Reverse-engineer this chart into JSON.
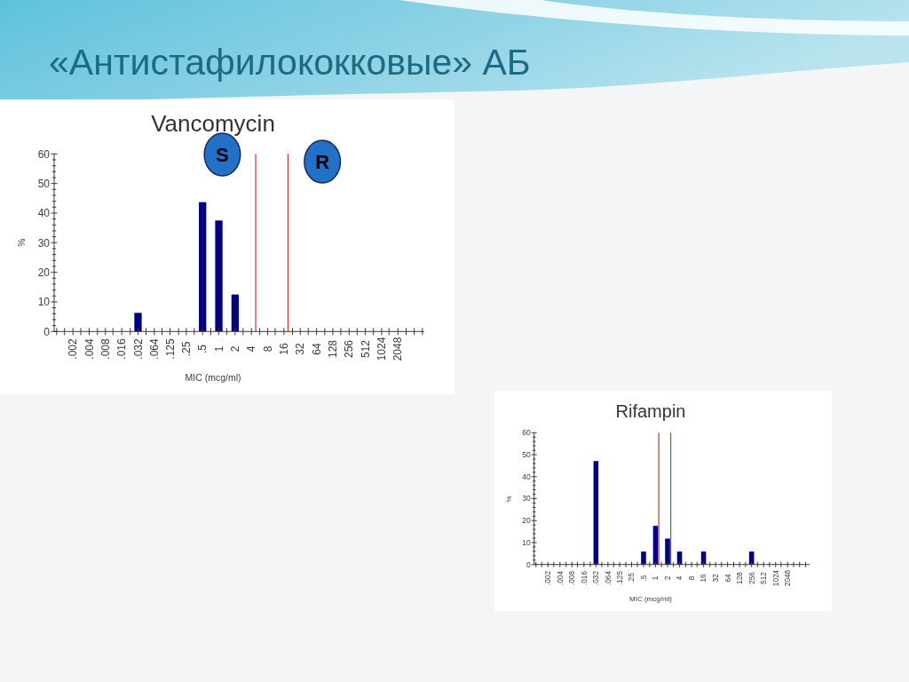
{
  "chart_data": [
    {
      "type": "bar",
      "title": "«Антистафилококковые» АБ",
      "subtitle": "Vancomycin",
      "xlabel": "MIC (mcg/ml)",
      "ylabel": "%",
      "x": [
        0.032,
        0.5,
        1,
        2
      ],
      "values": [
        6.3,
        43.7,
        37.5,
        12.5
      ],
      "color": "#000080",
      "log": "x",
      "xlim": [
        0.0009,
        6300
      ],
      "xticks": [
        {
          "value": 0.001,
          "label": null
        },
        {
          "value": 0.0014,
          "label": null
        },
        {
          "value": 0.002,
          "label": ".002"
        },
        {
          "value": 0.0028,
          "label": null
        },
        {
          "value": 0.004,
          "label": ".004"
        },
        {
          "value": 0.0057,
          "label": null
        },
        {
          "value": 0.008,
          "label": ".008"
        },
        {
          "value": 0.011,
          "label": null
        },
        {
          "value": 0.016,
          "label": ".016"
        },
        {
          "value": 0.023,
          "label": null
        },
        {
          "value": 0.032,
          "label": ".032"
        },
        {
          "value": 0.045,
          "label": null
        },
        {
          "value": 0.064,
          "label": ".064"
        },
        {
          "value": 0.089,
          "label": null
        },
        {
          "value": 0.125,
          "label": ".125"
        },
        {
          "value": 0.18,
          "label": null
        },
        {
          "value": 0.25,
          "label": ".25"
        },
        {
          "value": 0.35,
          "label": null
        },
        {
          "value": 0.5,
          "label": ".5"
        },
        {
          "value": 0.71,
          "label": null
        },
        1,
        {
          "value": 1.4,
          "label": null
        },
        2,
        {
          "value": 2.8,
          "label": null
        },
        4,
        {
          "value": 5.7,
          "label": null
        },
        8,
        {
          "value": 11,
          "label": null
        },
        16,
        {
          "value": 23,
          "label": null
        },
        32,
        {
          "value": 45,
          "label": null
        },
        64,
        {
          "value": 91,
          "label": null
        },
        128,
        {
          "value": 180,
          "label": null
        },
        256,
        {
          "value": 360,
          "label": null
        },
        512,
        {
          "value": 720,
          "label": null
        },
        1024,
        {
          "value": 1400,
          "label": null
        },
        2048,
        {
          "value": 2900,
          "label": null
        },
        {
          "value": 4100,
          "label": null
        },
        {
          "value": 5800,
          "label": null
        }
      ],
      "ylim": [
        0,
        60
      ],
      "yticks": [
        0,
        {
          "value": 2,
          "label": null
        },
        {
          "value": 4,
          "label": null
        },
        {
          "value": 6,
          "label": null
        },
        {
          "value": 8,
          "label": null
        },
        10,
        {
          "value": 12,
          "label": null
        },
        {
          "value": 14,
          "label": null
        },
        {
          "value": 16,
          "label": null
        },
        {
          "value": 18,
          "label": null
        },
        20,
        {
          "value": 22,
          "label": null
        },
        {
          "value": 24,
          "label": null
        },
        {
          "value": 26,
          "label": null
        },
        {
          "value": 28,
          "label": null
        },
        30,
        {
          "value": 32,
          "label": null
        },
        {
          "value": 34,
          "label": null
        },
        {
          "value": 36,
          "label": null
        },
        {
          "value": 38,
          "label": null
        },
        40,
        {
          "value": 42,
          "label": null
        },
        {
          "value": 44,
          "label": null
        },
        {
          "value": 46,
          "label": null
        },
        {
          "value": 48,
          "label": null
        },
        50,
        {
          "value": 52,
          "label": null
        },
        {
          "value": 54,
          "label": null
        },
        {
          "value": 56,
          "label": null
        },
        {
          "value": 58,
          "label": null
        },
        60
      ],
      "ref_lines": [
        {
          "axis": "x",
          "value": 4.8,
          "color": "#cc3333"
        },
        {
          "axis": "x",
          "value": 19,
          "color": "#cc3333"
        }
      ],
      "annotations": [
        "S",
        "R"
      ]
    },
    {
      "type": "bar",
      "title": "Rifampin",
      "xlabel": "MIC (mcg/ml)",
      "ylabel": "%",
      "x": [
        0.032,
        0.5,
        1,
        2,
        4,
        16,
        256
      ],
      "values": [
        47.1,
        5.9,
        17.6,
        11.8,
        5.9,
        5.9,
        5.9
      ],
      "color": "#000080",
      "log": "x",
      "xlim": [
        0.0009,
        7400
      ],
      "xticks": [
        {
          "value": 0.001,
          "label": null
        },
        {
          "value": 0.0014,
          "label": null
        },
        {
          "value": 0.002,
          "label": ".002"
        },
        {
          "value": 0.0028,
          "label": null
        },
        {
          "value": 0.004,
          "label": ".004"
        },
        {
          "value": 0.0057,
          "label": null
        },
        {
          "value": 0.008,
          "label": ".008"
        },
        {
          "value": 0.011,
          "label": null
        },
        {
          "value": 0.016,
          "label": ".016"
        },
        {
          "value": 0.023,
          "label": null
        },
        {
          "value": 0.032,
          "label": ".032"
        },
        {
          "value": 0.045,
          "label": null
        },
        {
          "value": 0.064,
          "label": ".064"
        },
        {
          "value": 0.089,
          "label": null
        },
        {
          "value": 0.125,
          "label": ".125"
        },
        {
          "value": 0.18,
          "label": null
        },
        {
          "value": 0.25,
          "label": ".25"
        },
        {
          "value": 0.35,
          "label": null
        },
        {
          "value": 0.5,
          "label": ".5"
        },
        {
          "value": 0.71,
          "label": null
        },
        1,
        {
          "value": 1.4,
          "label": null
        },
        2,
        {
          "value": 2.8,
          "label": null
        },
        4,
        {
          "value": 5.7,
          "label": null
        },
        8,
        {
          "value": 11,
          "label": null
        },
        16,
        {
          "value": 23,
          "label": null
        },
        32,
        {
          "value": 45,
          "label": null
        },
        64,
        {
          "value": 91,
          "label": null
        },
        128,
        {
          "value": 180,
          "label": null
        },
        256,
        {
          "value": 360,
          "label": null
        },
        512,
        {
          "value": 720,
          "label": null
        },
        1024,
        {
          "value": 1400,
          "label": null
        },
        2048,
        {
          "value": 2900,
          "label": null
        },
        {
          "value": 4100,
          "label": null
        },
        {
          "value": 5800,
          "label": null
        }
      ],
      "ylim": [
        0,
        60
      ],
      "yticks": [
        0,
        {
          "value": 2,
          "label": null
        },
        {
          "value": 4,
          "label": null
        },
        {
          "value": 6,
          "label": null
        },
        {
          "value": 8,
          "label": null
        },
        10,
        {
          "value": 12,
          "label": null
        },
        {
          "value": 14,
          "label": null
        },
        {
          "value": 16,
          "label": null
        },
        {
          "value": 18,
          "label": null
        },
        20,
        {
          "value": 22,
          "label": null
        },
        {
          "value": 24,
          "label": null
        },
        {
          "value": 26,
          "label": null
        },
        {
          "value": 28,
          "label": null
        },
        30,
        {
          "value": 32,
          "label": null
        },
        {
          "value": 34,
          "label": null
        },
        {
          "value": 36,
          "label": null
        },
        {
          "value": 38,
          "label": null
        },
        40,
        {
          "value": 42,
          "label": null
        },
        {
          "value": 44,
          "label": null
        },
        {
          "value": 46,
          "label": null
        },
        {
          "value": 48,
          "label": null
        },
        50,
        {
          "value": 52,
          "label": null
        },
        {
          "value": 54,
          "label": null
        },
        {
          "value": 56,
          "label": null
        },
        {
          "value": 58,
          "label": null
        },
        60
      ],
      "ref_lines": [
        {
          "axis": "x",
          "value": 1.2,
          "color": "#cc3333"
        },
        {
          "axis": "x",
          "value": 2.4,
          "color": "#cc3333"
        }
      ]
    }
  ]
}
